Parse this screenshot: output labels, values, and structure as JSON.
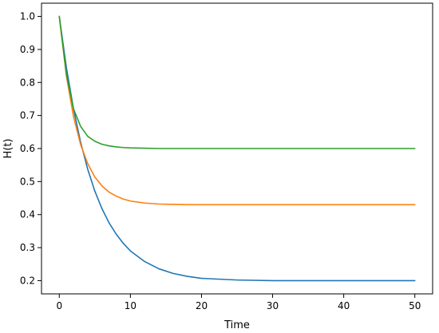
{
  "chart_data": {
    "type": "line",
    "title": "",
    "xlabel": "Time",
    "ylabel": "H(t)",
    "xlim": [
      -2.5,
      52.5
    ],
    "ylim": [
      0.16,
      1.04
    ],
    "x_ticks": [
      0,
      10,
      20,
      30,
      40,
      50
    ],
    "x_tick_labels": [
      "0",
      "10",
      "20",
      "30",
      "40",
      "50"
    ],
    "y_ticks": [
      0.2,
      0.3,
      0.4,
      0.5,
      0.6,
      0.7,
      0.8,
      0.9,
      1.0
    ],
    "y_tick_labels": [
      "0.2",
      "0.3",
      "0.4",
      "0.5",
      "0.6",
      "0.7",
      "0.8",
      "0.9",
      "1.0"
    ],
    "grid": false,
    "legend": "none",
    "series": [
      {
        "color": "#1f77b4",
        "x": [
          0,
          1,
          2,
          3,
          4,
          5,
          6,
          7,
          8,
          9,
          10,
          12,
          14,
          16,
          18,
          20,
          25,
          30,
          35,
          40,
          45,
          50
        ],
        "y": [
          1.0,
          0.845,
          0.72,
          0.619,
          0.537,
          0.471,
          0.418,
          0.375,
          0.341,
          0.313,
          0.29,
          0.258,
          0.236,
          0.222,
          0.213,
          0.207,
          0.202,
          0.2,
          0.2,
          0.2,
          0.2,
          0.2
        ]
      },
      {
        "color": "#ff7f0e",
        "x": [
          0,
          1,
          2,
          3,
          4,
          5,
          6,
          7,
          8,
          9,
          10,
          12,
          14,
          16,
          18,
          20,
          25,
          30,
          35,
          40,
          45,
          50
        ],
        "y": [
          1.0,
          0.82,
          0.697,
          0.612,
          0.554,
          0.514,
          0.487,
          0.468,
          0.456,
          0.447,
          0.441,
          0.435,
          0.432,
          0.431,
          0.43,
          0.43,
          0.43,
          0.43,
          0.43,
          0.43,
          0.43,
          0.43
        ]
      },
      {
        "color": "#2ca02c",
        "x": [
          0,
          1,
          2,
          3,
          4,
          5,
          6,
          7,
          8,
          9,
          10,
          12,
          14,
          16,
          18,
          20,
          25,
          30,
          35,
          40,
          45,
          50
        ],
        "y": [
          1.0,
          0.825,
          0.72,
          0.667,
          0.637,
          0.622,
          0.613,
          0.608,
          0.605,
          0.603,
          0.602,
          0.601,
          0.6,
          0.6,
          0.6,
          0.6,
          0.6,
          0.6,
          0.6,
          0.6,
          0.6,
          0.6
        ]
      }
    ]
  }
}
